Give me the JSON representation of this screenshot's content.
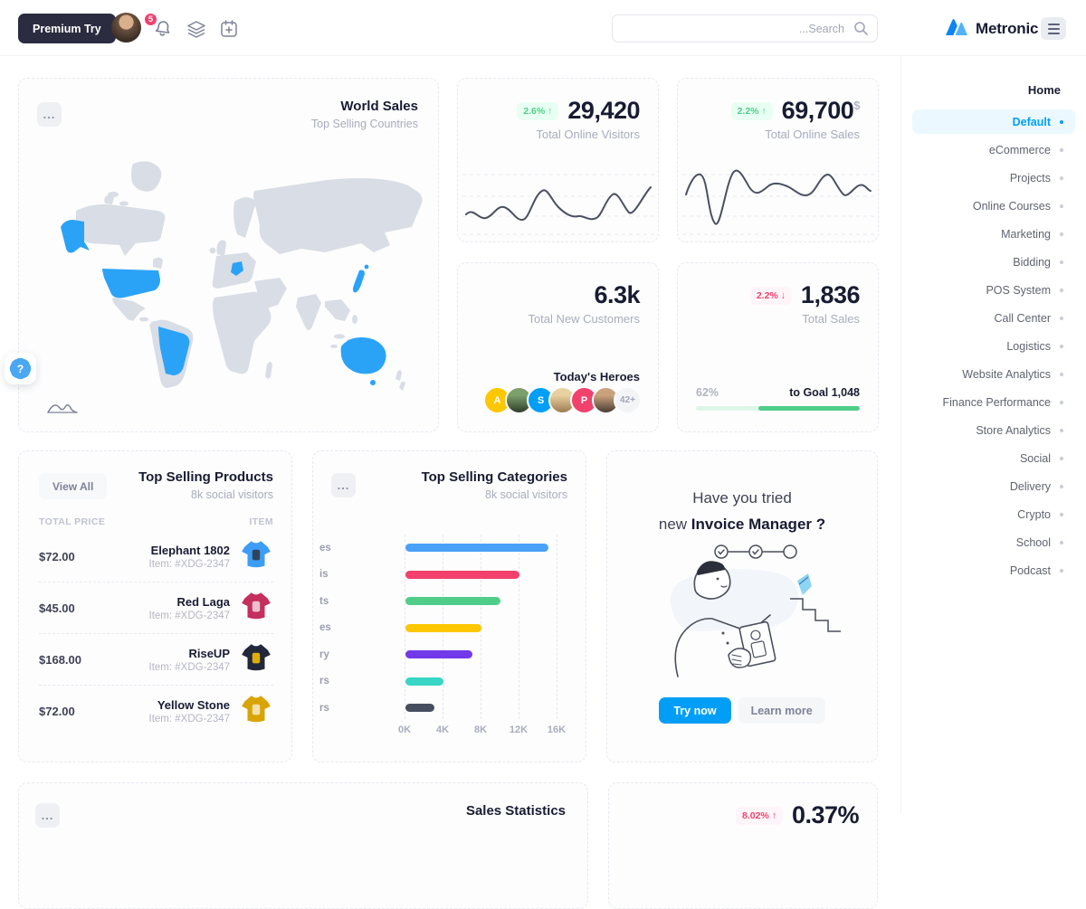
{
  "topbar": {
    "premium_label": "Premium Try",
    "notification_count": "5",
    "search_placeholder": "...Search",
    "brand": "Metronic"
  },
  "sidebar": {
    "section_title": "Home",
    "items": [
      {
        "label": "Default",
        "active": true
      },
      {
        "label": "eCommerce",
        "active": false
      },
      {
        "label": "Projects",
        "active": false
      },
      {
        "label": "Online Courses",
        "active": false
      },
      {
        "label": "Marketing",
        "active": false
      },
      {
        "label": "Bidding",
        "active": false
      },
      {
        "label": "POS System",
        "active": false
      },
      {
        "label": "Call Center",
        "active": false
      },
      {
        "label": "Logistics",
        "active": false
      },
      {
        "label": "Website Analytics",
        "active": false
      },
      {
        "label": "Finance Performance",
        "active": false
      },
      {
        "label": "Store Analytics",
        "active": false
      },
      {
        "label": "Social",
        "active": false
      },
      {
        "label": "Delivery",
        "active": false
      },
      {
        "label": "Crypto",
        "active": false
      },
      {
        "label": "School",
        "active": false
      },
      {
        "label": "Podcast",
        "active": false
      }
    ]
  },
  "world_sales": {
    "title": "World Sales",
    "subtitle": "Top Selling Countries",
    "menu_glyph": "...",
    "highlight_color": "#2aa3f7",
    "base_color": "#d9dde5"
  },
  "tiles": {
    "visitors": {
      "badge": "2.6%",
      "arrow": "↑",
      "value": "29,420",
      "label": "Total Online Visitors"
    },
    "online_sales": {
      "badge": "2.2%",
      "arrow": "↑",
      "value": "69,700",
      "currency": "$",
      "label": "Total Online Sales"
    },
    "customers": {
      "value": "6.3k",
      "label": "Total New Customers",
      "heroes_title": "Today's Heroes",
      "avatars": [
        {
          "type": "count",
          "label": "42+"
        },
        {
          "type": "photo",
          "palette": [
            "#caa27d",
            "#4a3b31"
          ]
        },
        {
          "type": "initial",
          "label": "P",
          "color": "#f1416c"
        },
        {
          "type": "photo",
          "palette": [
            "#e9d0a0",
            "#9b7b50"
          ]
        },
        {
          "type": "initial",
          "label": "S",
          "color": "#009ef7"
        },
        {
          "type": "photo",
          "palette": [
            "#7ba06b",
            "#2f3d2a"
          ]
        },
        {
          "type": "initial",
          "label": "A",
          "color": "#ffc700"
        }
      ]
    },
    "sales_goal": {
      "badge": "2.2%",
      "arrow": "↓",
      "value": "1,836",
      "label": "Total Sales",
      "progress_pct_label": "62%",
      "goal_label": "to Goal 1,048",
      "progress_pct": 62
    }
  },
  "products": {
    "view_all_label": "View All",
    "title": "Top Selling Products",
    "subtitle": "8k social visitors",
    "col_price": "TOTAL PRICE",
    "col_item": "ITEM",
    "rows": [
      {
        "price": "$72.00",
        "name": "Elephant 1802",
        "item": "Item: #XDG-2347",
        "shirt": "#3d9df6",
        "print": "#2e3442"
      },
      {
        "price": "$45.00",
        "name": "Red Laga",
        "item": "Item: #XDG-2347",
        "shirt": "#c42f5d",
        "print": "#f3d9e2"
      },
      {
        "price": "$168.00",
        "name": "RiseUP",
        "item": "Item: #XDG-2347",
        "shirt": "#23273a",
        "print": "#ffc700"
      },
      {
        "price": "$72.00",
        "name": "Yellow Stone",
        "item": "Item: #XDG-2347",
        "shirt": "#d9a406",
        "print": "#f7ecc8"
      }
    ]
  },
  "categories": {
    "title": "Top Selling Categories",
    "subtitle": "8k social visitors",
    "menu_glyph": "...",
    "chart_data": {
      "type": "bar",
      "orientation": "horizontal",
      "label_fragments": [
        "es",
        "is",
        "ts",
        "es",
        "ry",
        "rs",
        "rs"
      ],
      "values": [
        15000,
        12000,
        10000,
        8000,
        7000,
        4000,
        3000
      ],
      "colors": [
        "#4aa2f8",
        "#f1416c",
        "#50cd89",
        "#ffc700",
        "#7239ea",
        "#39d6c5",
        "#464e5f"
      ],
      "xmax": 16000,
      "ticks": [
        "0K",
        "4K",
        "8K",
        "12K",
        "16K"
      ],
      "grid": "vertical-dashed",
      "legend": "none"
    }
  },
  "invoice": {
    "line1": "Have you tried",
    "line2_normal": "new ",
    "line2_bold": "Invoice Manager ?",
    "try_label": "Try now",
    "learn_label": "Learn more"
  },
  "bottom": {
    "left_title": "Sales Statistics",
    "left_menu_glyph": "...",
    "stat_badge": "8.02%",
    "stat_arrow": "↑",
    "stat_value": "0.37%"
  },
  "help": {
    "glyph": "?"
  }
}
